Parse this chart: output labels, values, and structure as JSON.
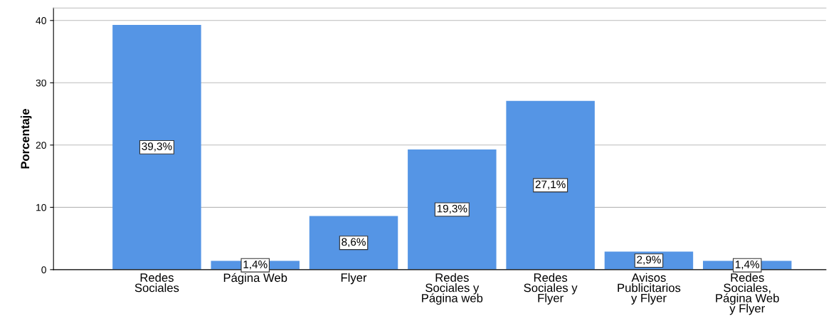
{
  "chart_data": {
    "type": "bar",
    "ylabel": "Porcentaje",
    "categories": [
      "Redes\nSociales",
      "Página Web",
      "Flyer",
      "Redes\nSociales y\nPágina web",
      "Redes\nSociales y\nFlyer",
      "Avisos\nPublicitarios\ny Flyer",
      "Redes\nSociales,\nPágina Web\ny Flyer"
    ],
    "values": [
      39.3,
      1.4,
      8.6,
      19.3,
      27.1,
      2.9,
      1.4
    ],
    "value_labels": [
      "39,3%",
      "1,4%",
      "8,6%",
      "19,3%",
      "27,1%",
      "2,9%",
      "1,4%"
    ],
    "color": "#5595e5",
    "ylim": [
      0,
      42
    ],
    "yticks": [
      0,
      10,
      20,
      30,
      40
    ],
    "grid": "y"
  }
}
